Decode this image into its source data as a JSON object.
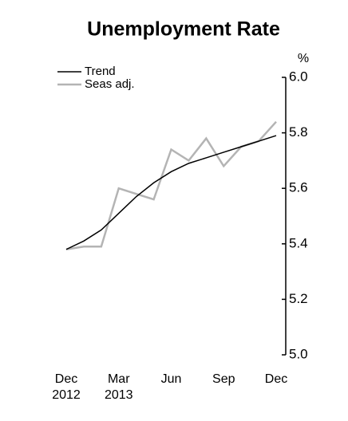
{
  "chart_data": {
    "type": "line",
    "title": "Unemployment Rate",
    "y_label": "%",
    "categories": [
      "Dec 2012",
      null,
      null,
      "Mar 2013",
      null,
      null,
      "Jun",
      null,
      null,
      "Sep",
      null,
      null,
      "Dec"
    ],
    "series": [
      {
        "name": "Trend",
        "color": "#000000",
        "values": [
          5.38,
          5.41,
          5.45,
          5.51,
          5.57,
          5.62,
          5.66,
          5.69,
          5.71,
          5.73,
          5.75,
          5.77,
          5.79
        ]
      },
      {
        "name": "Seas adj.",
        "color": "#b4b4b4",
        "values": [
          5.38,
          5.39,
          5.39,
          5.6,
          5.58,
          5.56,
          5.74,
          5.7,
          5.78,
          5.68,
          5.75,
          5.77,
          5.84
        ]
      }
    ],
    "ylim": [
      5.0,
      6.0
    ],
    "yticks": [
      {
        "value": 5.0,
        "label": "5.0"
      },
      5.2,
      5.4,
      5.6,
      5.8,
      {
        "value": 6.0,
        "label": "6.0"
      }
    ],
    "legend": "top-left"
  }
}
